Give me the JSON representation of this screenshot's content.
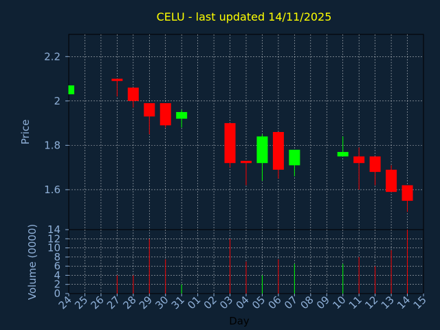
{
  "chart_data": {
    "type": "candlestick",
    "title": "CELU - last updated 14/11/2025",
    "xlabel": "Day",
    "price_ylabel": "Price",
    "volume_ylabel": "Volume (0000)",
    "x_ticks": [
      "24",
      "25",
      "26",
      "27",
      "28",
      "29",
      "30",
      "31",
      "01",
      "02",
      "03",
      "04",
      "05",
      "06",
      "07",
      "08",
      "09",
      "10",
      "11",
      "12",
      "13",
      "14",
      "15"
    ],
    "price_ylim": [
      1.42,
      2.3
    ],
    "price_yticks": [
      1.6,
      1.8,
      2,
      2.2
    ],
    "price_ytick_labels": [
      "1.6",
      "1.8",
      "2",
      "2.2"
    ],
    "volume_ylim": [
      0,
      14
    ],
    "volume_yticks": [
      0,
      2,
      4,
      6,
      8,
      10,
      12,
      14
    ],
    "volume_ytick_labels": [
      "0",
      "2",
      "4",
      "6",
      "8",
      "10",
      "12",
      "14"
    ],
    "grid": true,
    "colors": {
      "up": "#00ff00",
      "down": "#ff0000",
      "grid": "#ffffff",
      "frame": "#000000",
      "title": "#ffff00",
      "tick": "#8fb0d8",
      "background": "#0f2133"
    },
    "candles": [
      {
        "x": "24",
        "open": 2.03,
        "high": 2.07,
        "low": 2.03,
        "close": 2.07,
        "volume": 0
      },
      {
        "x": "27",
        "open": 2.1,
        "high": 2.1,
        "low": 2.02,
        "close": 2.09,
        "volume": 4
      },
      {
        "x": "28",
        "open": 2.06,
        "high": 2.06,
        "low": 1.97,
        "close": 2.0,
        "volume": 4
      },
      {
        "x": "29",
        "open": 1.99,
        "high": 1.99,
        "low": 1.85,
        "close": 1.93,
        "volume": 12
      },
      {
        "x": "30",
        "open": 1.99,
        "high": 1.99,
        "low": 1.88,
        "close": 1.89,
        "volume": 7.5
      },
      {
        "x": "31",
        "open": 1.92,
        "high": 1.96,
        "low": 1.88,
        "close": 1.95,
        "volume": 2
      },
      {
        "x": "03",
        "open": 1.9,
        "high": 1.9,
        "low": 1.7,
        "close": 1.72,
        "volume": 12
      },
      {
        "x": "04",
        "open": 1.73,
        "high": 1.73,
        "low": 1.62,
        "close": 1.72,
        "volume": 7
      },
      {
        "x": "05",
        "open": 1.72,
        "high": 1.85,
        "low": 1.64,
        "close": 1.84,
        "volume": 4
      },
      {
        "x": "06",
        "open": 1.86,
        "high": 1.86,
        "low": 1.65,
        "close": 1.69,
        "volume": 7.5
      },
      {
        "x": "07",
        "open": 1.71,
        "high": 1.78,
        "low": 1.66,
        "close": 1.78,
        "volume": 6.5
      },
      {
        "x": "10",
        "open": 1.75,
        "high": 1.84,
        "low": 1.75,
        "close": 1.77,
        "volume": 6.5
      },
      {
        "x": "11",
        "open": 1.75,
        "high": 1.79,
        "low": 1.6,
        "close": 1.72,
        "volume": 8
      },
      {
        "x": "12",
        "open": 1.75,
        "high": 1.75,
        "low": 1.62,
        "close": 1.68,
        "volume": 6
      },
      {
        "x": "13",
        "open": 1.69,
        "high": 1.71,
        "low": 1.59,
        "close": 1.59,
        "volume": 9.5
      },
      {
        "x": "14",
        "open": 1.62,
        "high": 1.62,
        "low": 1.5,
        "close": 1.55,
        "volume": 14
      }
    ]
  }
}
